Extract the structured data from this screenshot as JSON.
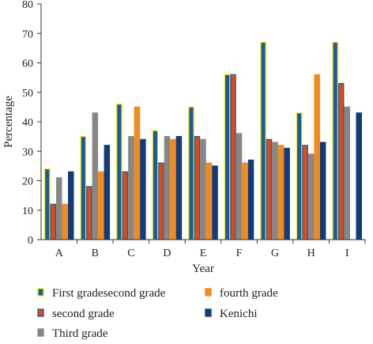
{
  "chart_data": {
    "type": "bar",
    "title": "",
    "xlabel": "Year",
    "ylabel": "Percentage",
    "ylim": [
      0,
      80
    ],
    "yticks": [
      0,
      10,
      20,
      30,
      40,
      50,
      60,
      70,
      80
    ],
    "categories": [
      "A",
      "B",
      "C",
      "D",
      "E",
      "F",
      "G",
      "H",
      "I"
    ],
    "series": [
      {
        "name": "First gradesecond grade",
        "color": "#1c5a9e",
        "border": "#f2e600",
        "values": [
          24,
          35,
          46,
          37,
          45,
          56,
          67,
          43,
          67
        ]
      },
      {
        "name": "second grade",
        "color": "#d94b1e",
        "border": "#1c5a9e",
        "values": [
          12,
          18,
          23,
          26,
          35,
          56,
          34,
          32,
          53
        ]
      },
      {
        "name": "Third grade",
        "color": "#878787",
        "border": "#878787",
        "values": [
          21,
          43,
          35,
          35,
          34,
          36,
          33,
          29,
          45
        ]
      },
      {
        "name": "fourth grade",
        "color": "#f28a1c",
        "border": "#f28a1c",
        "values": [
          12,
          23,
          45,
          34,
          26,
          26,
          32,
          56,
          0
        ]
      },
      {
        "name": "Kenichi",
        "color": "#133b7a",
        "border": "#133b7a",
        "values": [
          23,
          32,
          34,
          35,
          25,
          27,
          31,
          33,
          43
        ]
      }
    ],
    "legend": {
      "placement": "bottom",
      "order": [
        0,
        3,
        1,
        4,
        2
      ]
    },
    "grid": false
  }
}
